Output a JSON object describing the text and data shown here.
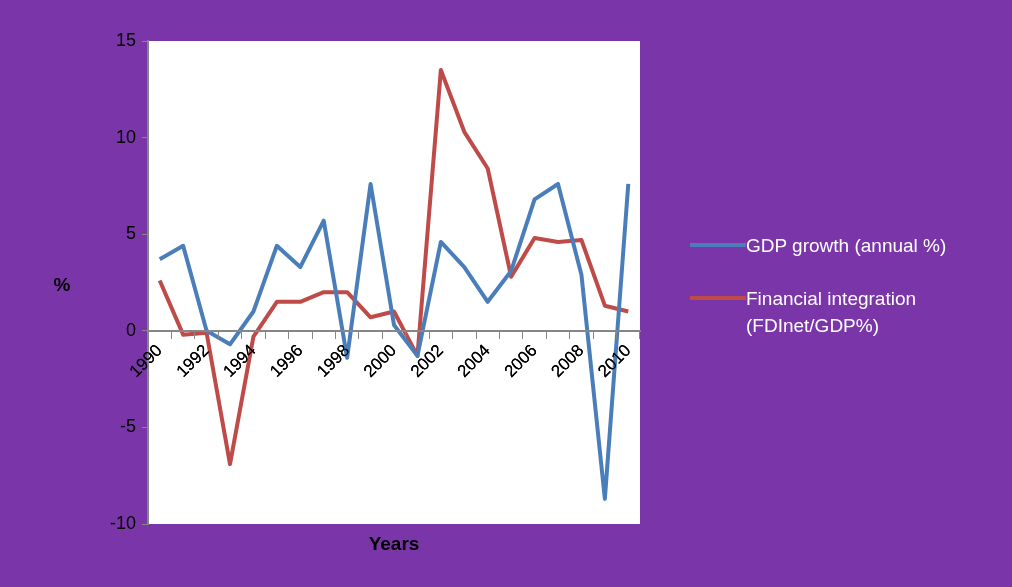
{
  "chart_data": {
    "type": "line",
    "xlabel": "Years",
    "ylabel": "%",
    "categories": [
      "1990",
      null,
      "1992",
      null,
      "1994",
      null,
      "1996",
      null,
      "1998",
      null,
      "2000",
      null,
      "2002",
      null,
      "2004",
      null,
      "2006",
      null,
      "2008",
      null,
      "2010"
    ],
    "series": [
      {
        "name": "GDP growth (annual %)",
        "color": "#4a7ebb",
        "values": [
          3.7,
          4.4,
          0.0,
          -0.7,
          1.0,
          4.4,
          3.3,
          5.7,
          -1.4,
          7.6,
          0.3,
          -1.3,
          4.6,
          3.3,
          1.5,
          3.1,
          6.8,
          7.6,
          2.9,
          -8.7,
          7.6
        ]
      },
      {
        "name": "Financial integration (FDInet/GDP%)",
        "color": "#be4b48",
        "values": [
          2.6,
          -0.2,
          -0.1,
          -6.9,
          -0.3,
          1.5,
          1.5,
          2.0,
          2.0,
          0.7,
          1.0,
          -1.3,
          13.5,
          10.3,
          8.4,
          2.8,
          4.8,
          4.6,
          4.7,
          1.3,
          1.0
        ]
      }
    ],
    "ylim": [
      -10,
      15
    ],
    "yticks": [
      -10,
      -5,
      0,
      5,
      10,
      15
    ],
    "grid": false,
    "legend": "right",
    "marker": "none",
    "line_style": "solid"
  }
}
